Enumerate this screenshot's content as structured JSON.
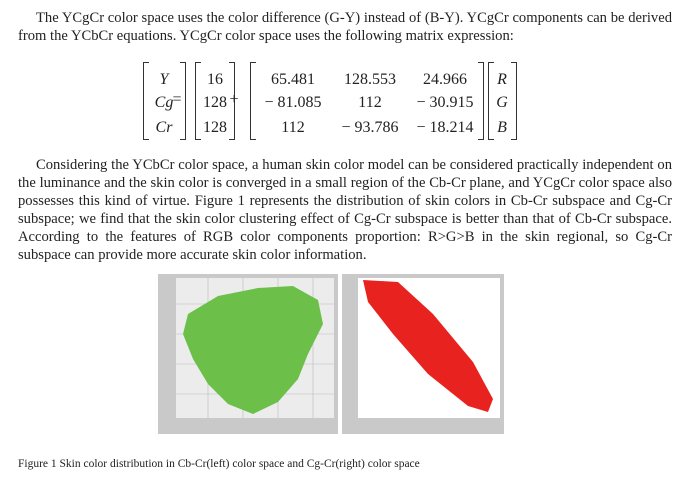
{
  "paragraphs": [
    "The YCgCr color space uses the color difference (G-Y) instead of (B-Y). YCgCr components can be derived from the YCbCr equations. YCgCr color space uses the following matrix expression:",
    "Considering the YCbCr color space, a human skin color model can be considered practically independent on the luminance and the skin color is converged in a small region of the Cb-Cr plane, and YCgCr color space also possesses this kind of virtue. Figure 1 represents the distribution of skin colors in Cb-Cr subspace and Cg-Cr subspace; we find that the skin color clustering effect of Cg-Cr subspace is better than that of Cb-Cr subspace. According to the features of RGB color components proportion: R>G>B in the skin regional, so Cg-Cr subspace can provide more accurate skin color information."
  ],
  "equation": {
    "lhs": [
      "Y",
      "Cg",
      "Cr"
    ],
    "equals": "=",
    "offset": [
      "16",
      "128",
      "128"
    ],
    "plus": "+",
    "matrix": [
      [
        "65.481",
        "128.553",
        "24.966"
      ],
      [
        "− 81.085",
        "112",
        "− 30.915"
      ],
      [
        "112",
        "− 93.786",
        "− 18.214"
      ]
    ],
    "rhs": [
      "R",
      "G",
      "B"
    ]
  },
  "figure": {
    "caption": "Figure 1 Skin color distribution in Cb-Cr(left) color space and Cg-Cr(right) color space"
  }
}
